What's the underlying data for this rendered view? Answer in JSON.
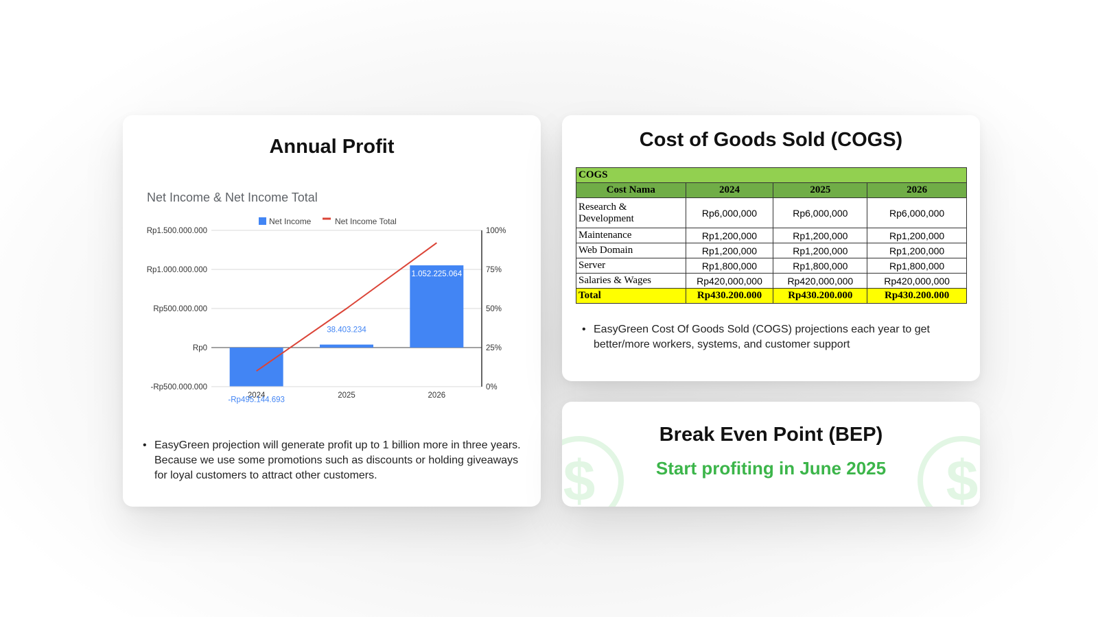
{
  "profit_card": {
    "title": "Annual Profit",
    "note": "EasyGreen projection will generate profit up to 1 billion more in three years. Because we use some promotions such as discounts or holding giveaways for loyal customers to attract other customers."
  },
  "cogs_card": {
    "title": "Cost of Goods Sold (COGS)",
    "table": {
      "caption": "COGS",
      "headers": [
        "Cost Nama",
        "2024",
        "2025",
        "2026"
      ],
      "rows": [
        [
          "Research & Development",
          "Rp6,000,000",
          "Rp6,000,000",
          "Rp6,000,000"
        ],
        [
          "Maintenance",
          "Rp1,200,000",
          "Rp1,200,000",
          "Rp1,200,000"
        ],
        [
          "Web Domain",
          "Rp1,200,000",
          "Rp1,200,000",
          "Rp1,200,000"
        ],
        [
          "Server",
          "Rp1,800,000",
          "Rp1,800,000",
          "Rp1,800,000"
        ],
        [
          "Salaries & Wages",
          "Rp420,000,000",
          "Rp420,000,000",
          "Rp420,000,000"
        ]
      ],
      "total": [
        "Total",
        "Rp430.200.000",
        "Rp430.200.000",
        "Rp430.200.000"
      ]
    },
    "note": "EasyGreen Cost Of Goods Sold (COGS) projections each year to get better/more workers, systems, and customer support"
  },
  "bep_card": {
    "title": "Break Even Point (BEP)",
    "subtitle": "Start profiting in June 2025",
    "icon": "dollar-coin-icon",
    "icon_glyph": "$"
  },
  "colors": {
    "bar": "#4285f4",
    "line": "#db4437",
    "bep_green": "#3cb54a",
    "table_header": "#70ad47",
    "table_title": "#92d050",
    "table_total": "#ffff00"
  },
  "chart_data": {
    "type": "bar",
    "title": "Net Income & Net Income Total",
    "categories": [
      "2024",
      "2025",
      "2026"
    ],
    "series": [
      {
        "name": "Net Income",
        "type": "bar",
        "axis": "left",
        "values": [
          -495144693,
          38403234,
          1052225064
        ]
      },
      {
        "name": "Net Income Total",
        "type": "line",
        "axis": "right",
        "values": [
          0.1,
          0.5,
          0.92
        ]
      }
    ],
    "data_labels": [
      "-Rp495.144.693",
      "38.403.234",
      "1.052.225.064"
    ],
    "y_ticks": [
      "Rp1.500.000.000",
      "Rp1.000.000.000",
      "Rp500.000.000",
      "Rp0",
      "-Rp500.000.000"
    ],
    "y_tick_values": [
      1500000000,
      1000000000,
      500000000,
      0,
      -500000000
    ],
    "y2_ticks": [
      "100%",
      "75%",
      "50%",
      "25%",
      "0%"
    ],
    "y2_tick_values": [
      1,
      0.75,
      0.5,
      0.25,
      0
    ],
    "ylim": [
      -500000000,
      1500000000
    ],
    "y2lim": [
      0,
      1
    ],
    "legend_position": "top",
    "grid": true
  }
}
